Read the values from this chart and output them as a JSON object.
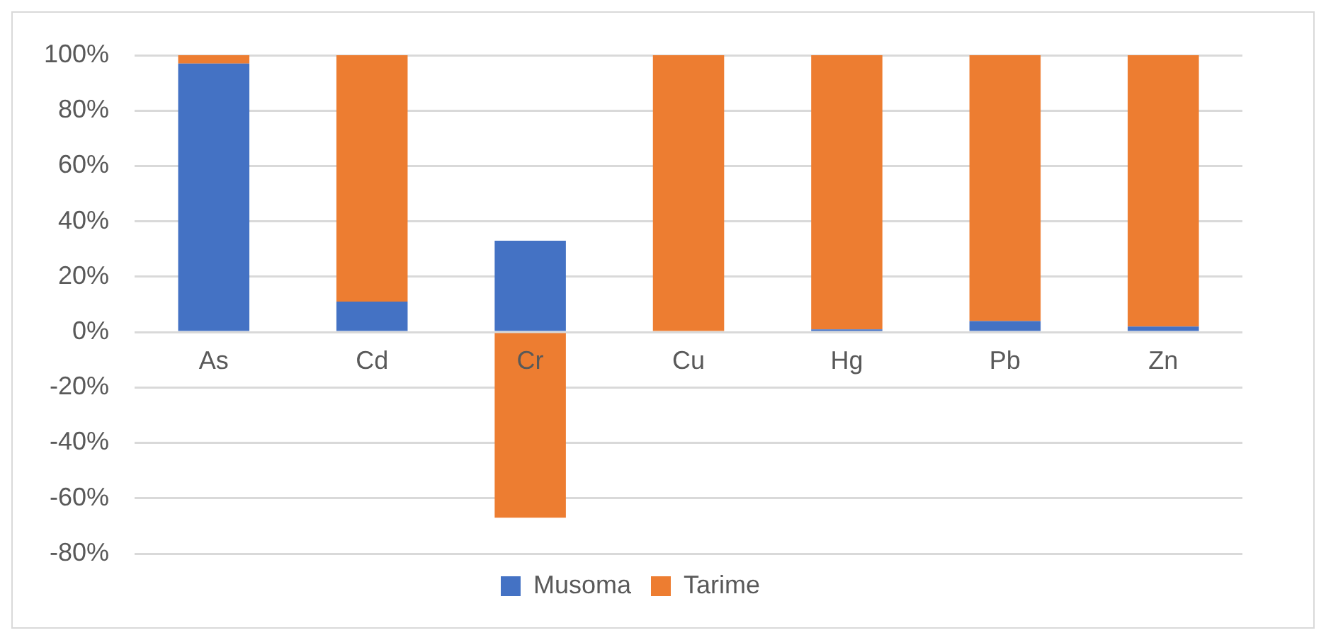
{
  "chart_data": {
    "type": "bar",
    "stacked": true,
    "categories": [
      "As",
      "Cd",
      "Cr",
      "Cu",
      "Hg",
      "Pb",
      "Zn"
    ],
    "series": [
      {
        "name": "Musoma",
        "color": "#4472c4",
        "values": [
          97,
          11,
          33,
          0,
          1,
          4,
          2
        ]
      },
      {
        "name": "Tarime",
        "color": "#ed7d31",
        "values": [
          3,
          89,
          -67,
          100,
          99,
          96,
          98
        ]
      }
    ],
    "ylim": [
      -80,
      100
    ],
    "yticks": [
      {
        "value": -80,
        "label": "-80%"
      },
      {
        "value": -60,
        "label": "-60%"
      },
      {
        "value": -40,
        "label": "-40%"
      },
      {
        "value": -20,
        "label": "-20%"
      },
      {
        "value": 0,
        "label": "0%"
      },
      {
        "value": 20,
        "label": "20%"
      },
      {
        "value": 40,
        "label": "40%"
      },
      {
        "value": 60,
        "label": "60%"
      },
      {
        "value": 80,
        "label": "80%"
      },
      {
        "value": 100,
        "label": "100%"
      }
    ],
    "grid": "y",
    "legend": "bottom"
  }
}
